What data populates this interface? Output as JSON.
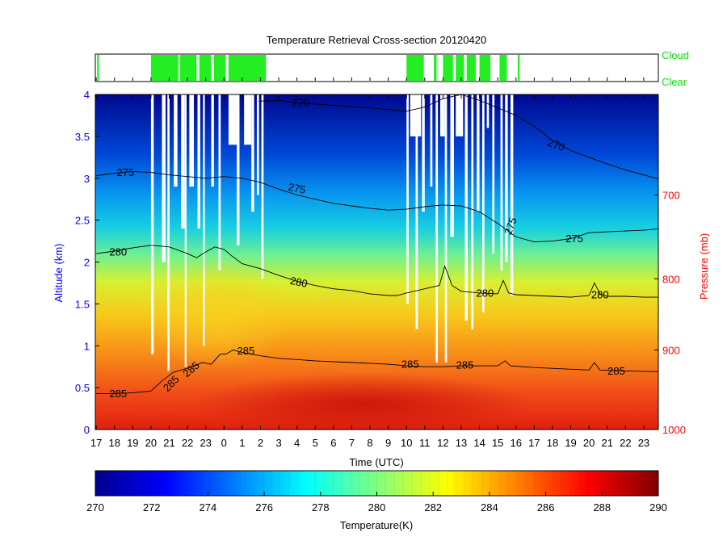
{
  "chart_data": {
    "type": "heatmap",
    "title": "Temperature Retrieval Cross-section 20120420",
    "xlabel": "Time (UTC)",
    "ylabel_left": "Altitude (km)",
    "ylabel_right": "Pressure (mb)",
    "colorbar_label": "Temperature(K)",
    "x_tick_labels": [
      "17",
      "18",
      "19",
      "20",
      "21",
      "22",
      "23",
      "0",
      "1",
      "2",
      "3",
      "4",
      "5",
      "6",
      "7",
      "8",
      "9",
      "10",
      "11",
      "12",
      "13",
      "14",
      "15",
      "16",
      "17",
      "18",
      "19",
      "20",
      "21",
      "22",
      "23"
    ],
    "y_left_ticks": [
      "0",
      "0.5",
      "1",
      "1.5",
      "2",
      "2.5",
      "3",
      "3.5",
      "4"
    ],
    "y_left_range_km": [
      0,
      4
    ],
    "y_right_ticks": [
      {
        "label": "1000",
        "altitude_km": 0
      },
      {
        "label": "900",
        "altitude_km": 0.95
      },
      {
        "label": "800",
        "altitude_km": 1.8
      },
      {
        "label": "700",
        "altitude_km": 2.8
      }
    ],
    "colorbar_ticks": [
      "270",
      "272",
      "274",
      "276",
      "278",
      "280",
      "282",
      "284",
      "286",
      "288",
      "290"
    ],
    "colorbar_range": [
      270,
      290
    ],
    "cloud_strip": {
      "labels": {
        "cloud": "Cloud",
        "clear": "Clear"
      },
      "cloudy_intervals_hours": [
        [
          0.05,
          0.15
        ],
        [
          3.0,
          4.5
        ],
        [
          4.6,
          5.5
        ],
        [
          5.65,
          6.3
        ],
        [
          6.45,
          7.1
        ],
        [
          7.25,
          9.3
        ],
        [
          17.0,
          17.95
        ],
        [
          18.5,
          18.65
        ],
        [
          19.0,
          19.55
        ],
        [
          19.7,
          20.15
        ],
        [
          20.3,
          20.8
        ],
        [
          21.0,
          21.6
        ],
        [
          22.1,
          22.5
        ],
        [
          23.1,
          23.2
        ]
      ]
    },
    "contours": [
      {
        "level_label": "270",
        "points": [
          [
            8.9,
            3.92
          ],
          [
            10,
            3.93
          ],
          [
            11,
            3.9
          ],
          [
            13,
            3.87
          ],
          [
            15,
            3.84
          ],
          [
            16,
            3.82
          ],
          [
            17,
            3.8
          ],
          [
            18,
            3.85
          ],
          [
            19,
            3.95
          ],
          [
            20,
            4.0
          ],
          [
            21,
            3.93
          ],
          [
            22,
            3.84
          ],
          [
            23,
            3.75
          ],
          [
            24,
            3.62
          ],
          [
            25,
            3.45
          ],
          [
            26,
            3.33
          ],
          [
            27,
            3.25
          ],
          [
            28,
            3.17
          ],
          [
            29,
            3.1
          ],
          [
            30,
            3.04
          ],
          [
            31,
            2.98
          ]
        ]
      },
      {
        "level_label": "275",
        "points": [
          [
            0,
            3.03
          ],
          [
            1,
            3.06
          ],
          [
            2,
            3.08
          ],
          [
            3,
            3.07
          ],
          [
            4,
            3.04
          ],
          [
            5,
            3.02
          ],
          [
            6,
            3.0
          ],
          [
            7,
            3.02
          ],
          [
            8,
            3.0
          ],
          [
            9,
            2.95
          ],
          [
            10,
            2.87
          ],
          [
            11,
            2.8
          ],
          [
            12,
            2.75
          ],
          [
            13,
            2.7
          ],
          [
            14,
            2.67
          ],
          [
            15,
            2.64
          ],
          [
            16,
            2.62
          ],
          [
            17,
            2.63
          ],
          [
            18,
            2.66
          ],
          [
            19,
            2.68
          ],
          [
            20,
            2.67
          ],
          [
            21,
            2.6
          ],
          [
            22,
            2.46
          ],
          [
            23,
            2.3
          ],
          [
            24,
            2.24
          ],
          [
            25,
            2.25
          ],
          [
            26,
            2.28
          ],
          [
            27,
            2.35
          ],
          [
            28,
            2.36
          ],
          [
            29,
            2.37
          ],
          [
            30,
            2.38
          ],
          [
            31,
            2.4
          ]
        ]
      },
      {
        "level_label": "280",
        "points": [
          [
            0,
            2.1
          ],
          [
            1,
            2.13
          ],
          [
            2,
            2.17
          ],
          [
            3,
            2.2
          ],
          [
            4,
            2.18
          ],
          [
            5,
            2.1
          ],
          [
            5.5,
            2.05
          ],
          [
            6,
            2.12
          ],
          [
            6.5,
            2.18
          ],
          [
            7,
            2.15
          ],
          [
            7.5,
            2.06
          ],
          [
            8,
            1.98
          ],
          [
            9,
            1.92
          ],
          [
            10,
            1.84
          ],
          [
            11,
            1.77
          ],
          [
            12,
            1.72
          ],
          [
            13,
            1.68
          ],
          [
            14,
            1.66
          ],
          [
            15,
            1.62
          ],
          [
            16,
            1.6
          ],
          [
            16.5,
            1.6
          ],
          [
            17,
            1.63
          ],
          [
            18,
            1.68
          ],
          [
            18.8,
            1.72
          ],
          [
            19.1,
            1.95
          ],
          [
            19.5,
            1.72
          ],
          [
            20,
            1.65
          ],
          [
            21,
            1.63
          ],
          [
            22,
            1.62
          ],
          [
            22.3,
            1.78
          ],
          [
            22.6,
            1.63
          ],
          [
            23,
            1.61
          ],
          [
            24,
            1.6
          ],
          [
            25,
            1.59
          ],
          [
            26,
            1.58
          ],
          [
            27,
            1.6
          ],
          [
            27.3,
            1.75
          ],
          [
            27.6,
            1.62
          ],
          [
            28,
            1.59
          ],
          [
            29,
            1.59
          ],
          [
            30,
            1.58
          ],
          [
            31,
            1.58
          ]
        ]
      },
      {
        "level_label": "285",
        "points": [
          [
            0,
            0.43
          ],
          [
            1,
            0.43
          ],
          [
            2,
            0.44
          ],
          [
            3,
            0.46
          ],
          [
            3.6,
            0.58
          ],
          [
            4.2,
            0.68
          ],
          [
            4.8,
            0.72
          ],
          [
            5.3,
            0.75
          ],
          [
            5.8,
            0.8
          ],
          [
            6.3,
            0.78
          ],
          [
            6.8,
            0.9
          ],
          [
            7.1,
            0.9
          ],
          [
            7.5,
            0.95
          ],
          [
            8,
            0.92
          ],
          [
            9,
            0.88
          ],
          [
            10,
            0.85
          ],
          [
            12,
            0.82
          ],
          [
            14,
            0.8
          ],
          [
            16,
            0.78
          ],
          [
            17,
            0.76
          ],
          [
            18,
            0.75
          ],
          [
            19,
            0.75
          ],
          [
            20,
            0.76
          ],
          [
            21,
            0.76
          ],
          [
            22,
            0.76
          ],
          [
            22.4,
            0.82
          ],
          [
            22.7,
            0.76
          ],
          [
            24,
            0.74
          ],
          [
            26,
            0.72
          ],
          [
            27,
            0.71
          ],
          [
            27.3,
            0.8
          ],
          [
            27.6,
            0.71
          ],
          [
            29,
            0.7
          ],
          [
            31,
            0.69
          ]
        ]
      }
    ],
    "contour_labels": [
      {
        "text": "270",
        "x_hours": 11.2,
        "y_km": 3.9,
        "angle": -2
      },
      {
        "text": "270",
        "x_hours": 25.2,
        "y_km": 3.4,
        "angle": 20
      },
      {
        "text": "275",
        "x_hours": 1.6,
        "y_km": 3.07,
        "angle": 0
      },
      {
        "text": "275",
        "x_hours": 11.0,
        "y_km": 2.88,
        "angle": 12
      },
      {
        "text": "275",
        "x_hours": 22.7,
        "y_km": 2.43,
        "angle": -70
      },
      {
        "text": "275",
        "x_hours": 26.2,
        "y_km": 2.28,
        "angle": 0
      },
      {
        "text": "280",
        "x_hours": 1.2,
        "y_km": 2.12,
        "angle": 0
      },
      {
        "text": "280",
        "x_hours": 11.1,
        "y_km": 1.76,
        "angle": 12
      },
      {
        "text": "280",
        "x_hours": 21.3,
        "y_km": 1.63,
        "angle": 0
      },
      {
        "text": "280",
        "x_hours": 27.6,
        "y_km": 1.61,
        "angle": 0
      },
      {
        "text": "285",
        "x_hours": 1.2,
        "y_km": 0.43,
        "angle": 0
      },
      {
        "text": "285",
        "x_hours": 4.1,
        "y_km": 0.55,
        "angle": -45
      },
      {
        "text": "285",
        "x_hours": 5.2,
        "y_km": 0.72,
        "angle": -40
      },
      {
        "text": "285",
        "x_hours": 8.2,
        "y_km": 0.94,
        "angle": 0
      },
      {
        "text": "285",
        "x_hours": 17.2,
        "y_km": 0.78,
        "angle": 0
      },
      {
        "text": "285",
        "x_hours": 20.2,
        "y_km": 0.77,
        "angle": 0
      },
      {
        "text": "285",
        "x_hours": 28.5,
        "y_km": 0.7,
        "angle": 0
      }
    ],
    "missing_data_columns": [
      {
        "x_hours": 3.0,
        "from_km": 0.9,
        "width_hours": 0.15
      },
      {
        "x_hours": 3.6,
        "from_km": 2.0,
        "width_hours": 0.2
      },
      {
        "x_hours": 3.9,
        "from_km": 0.7,
        "width_hours": 0.12
      },
      {
        "x_hours": 4.25,
        "from_km": 2.9,
        "width_hours": 0.2
      },
      {
        "x_hours": 4.65,
        "from_km": 2.4,
        "width_hours": 0.2
      },
      {
        "x_hours": 4.85,
        "from_km": 0.75,
        "width_hours": 0.1
      },
      {
        "x_hours": 5.1,
        "from_km": 2.9,
        "width_hours": 0.25
      },
      {
        "x_hours": 5.55,
        "from_km": 2.4,
        "width_hours": 0.15
      },
      {
        "x_hours": 5.85,
        "from_km": 1.0,
        "width_hours": 0.1
      },
      {
        "x_hours": 6.3,
        "from_km": 2.9,
        "width_hours": 0.15
      },
      {
        "x_hours": 6.7,
        "from_km": 1.9,
        "width_hours": 0.12
      },
      {
        "x_hours": 7.25,
        "from_km": 3.4,
        "width_hours": 0.5
      },
      {
        "x_hours": 7.7,
        "from_km": 2.2,
        "width_hours": 0.15
      },
      {
        "x_hours": 8.1,
        "from_km": 3.4,
        "width_hours": 0.4
      },
      {
        "x_hours": 8.5,
        "from_km": 2.6,
        "width_hours": 0.15
      },
      {
        "x_hours": 8.8,
        "from_km": 2.8,
        "width_hours": 0.12
      },
      {
        "x_hours": 9.05,
        "from_km": 1.8,
        "width_hours": 0.12
      },
      {
        "x_hours": 17.0,
        "from_km": 1.5,
        "width_hours": 0.12
      },
      {
        "x_hours": 17.2,
        "from_km": 3.5,
        "width_hours": 0.6
      },
      {
        "x_hours": 17.5,
        "from_km": 1.2,
        "width_hours": 0.12
      },
      {
        "x_hours": 17.85,
        "from_km": 2.6,
        "width_hours": 0.15
      },
      {
        "x_hours": 18.3,
        "from_km": 2.9,
        "width_hours": 0.12
      },
      {
        "x_hours": 18.6,
        "from_km": 0.8,
        "width_hours": 0.12
      },
      {
        "x_hours": 18.85,
        "from_km": 3.5,
        "width_hours": 0.25
      },
      {
        "x_hours": 19.1,
        "from_km": 0.8,
        "width_hours": 0.12
      },
      {
        "x_hours": 19.4,
        "from_km": 2.3,
        "width_hours": 0.2
      },
      {
        "x_hours": 19.7,
        "from_km": 3.5,
        "width_hours": 0.4
      },
      {
        "x_hours": 20.2,
        "from_km": 1.3,
        "width_hours": 0.15
      },
      {
        "x_hours": 20.55,
        "from_km": 1.2,
        "width_hours": 0.12
      },
      {
        "x_hours": 20.85,
        "from_km": 2.6,
        "width_hours": 0.15
      },
      {
        "x_hours": 21.15,
        "from_km": 1.4,
        "width_hours": 0.12
      },
      {
        "x_hours": 21.4,
        "from_km": 3.6,
        "width_hours": 0.12
      },
      {
        "x_hours": 21.7,
        "from_km": 2.1,
        "width_hours": 0.12
      },
      {
        "x_hours": 22.15,
        "from_km": 1.9,
        "width_hours": 0.12
      },
      {
        "x_hours": 22.4,
        "from_km": 2.0,
        "width_hours": 0.15
      },
      {
        "x_hours": 22.7,
        "from_km": 1.6,
        "width_hours": 0.15
      }
    ]
  }
}
